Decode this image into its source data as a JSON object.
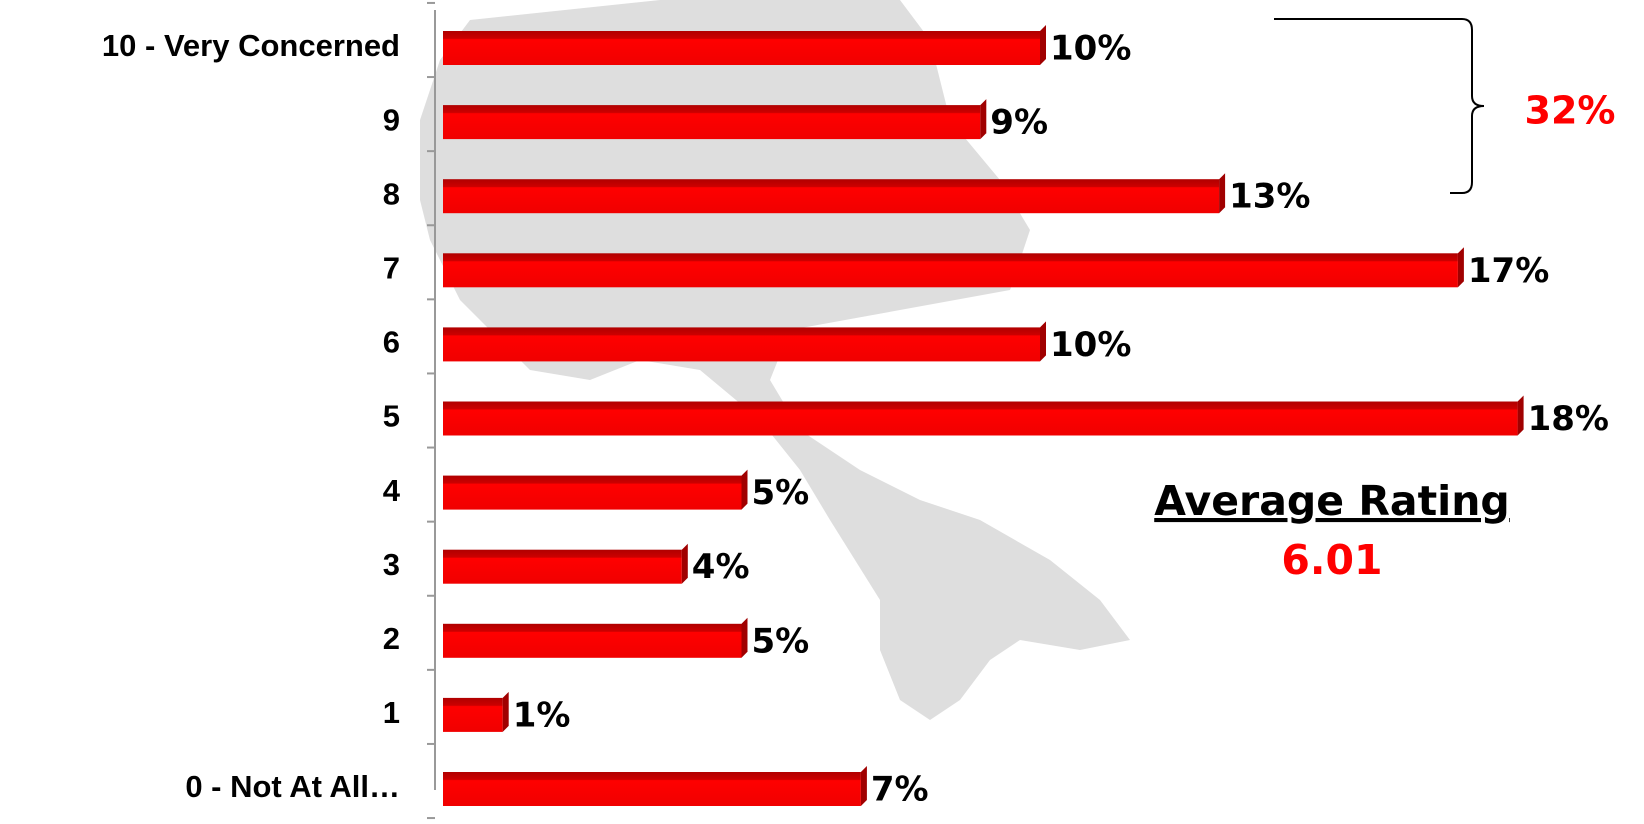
{
  "chart_data": {
    "type": "hbar",
    "categories": [
      "10 - Very Concerned",
      "9",
      "8",
      "7",
      "6",
      "5",
      "4",
      "3",
      "2",
      "1",
      "0 - Not At All…"
    ],
    "values": [
      10,
      9,
      13,
      17,
      10,
      18,
      5,
      4,
      5,
      1,
      7
    ],
    "value_labels": [
      "10%",
      "9%",
      "13%",
      "17%",
      "10%",
      "18%",
      "5%",
      "4%",
      "5%",
      "1%",
      "7%"
    ],
    "color": "#ff0000",
    "xlim": [
      0,
      20
    ],
    "annotations": {
      "bracket": "32%",
      "average_title": "Average Rating",
      "average_value": "6.01"
    }
  }
}
